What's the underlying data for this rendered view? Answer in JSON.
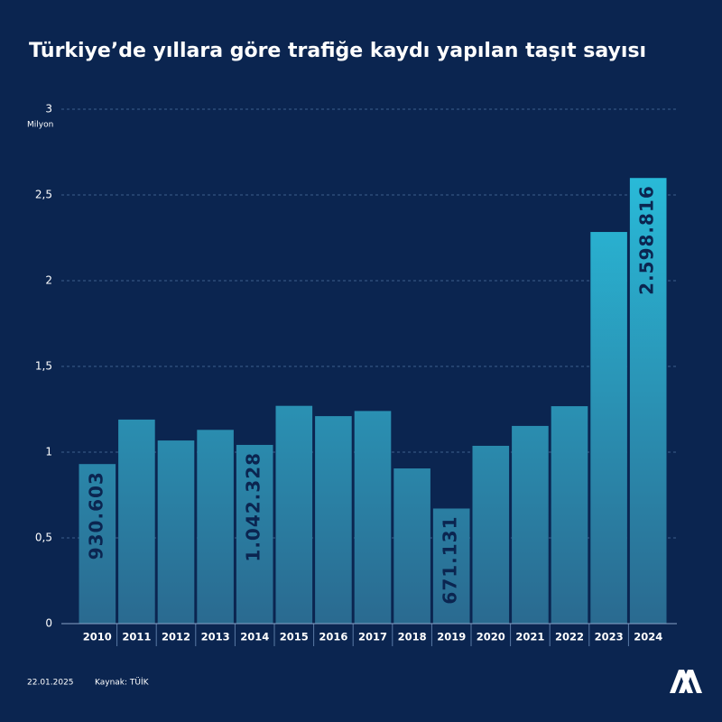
{
  "chart_data": {
    "type": "bar",
    "title": "Türkiye’de yıllara göre trafiğe kaydı yapılan taşıt sayısı",
    "y_label": "Milyon",
    "categories": [
      "2010",
      "2011",
      "2012",
      "2013",
      "2014",
      "2015",
      "2016",
      "2017",
      "2018",
      "2019",
      "2020",
      "2021",
      "2022",
      "2023",
      "2024"
    ],
    "values": [
      0.930603,
      1.19,
      1.068,
      1.13,
      1.042328,
      1.27,
      1.21,
      1.24,
      0.905,
      0.671131,
      1.037,
      1.153,
      1.268,
      2.284,
      2.598816
    ],
    "value_labels": [
      "930.603",
      null,
      null,
      null,
      "1.042.328",
      null,
      null,
      null,
      null,
      "671.131",
      null,
      null,
      null,
      null,
      "2.598.816"
    ],
    "color": "#29c6e3",
    "ylim": [
      0,
      3
    ],
    "yticks": [
      0,
      {
        "value": 0.5,
        "label": "0,5"
      },
      1,
      {
        "value": 1.5,
        "label": "1,5"
      },
      2,
      {
        "value": 2.5,
        "label": "2,5"
      },
      3
    ],
    "grid": true,
    "date": "22.01.2025",
    "source": "Kaynak: TÜİK"
  }
}
